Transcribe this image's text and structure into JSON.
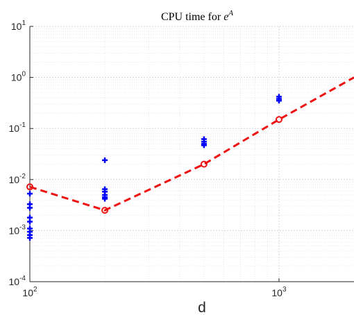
{
  "chart_data": {
    "type": "scatter",
    "title": "CPU time for e^A",
    "title_prefix": "CPU time for ",
    "title_base": "e",
    "title_exponent": "A",
    "xlabel": "d",
    "ylabel": "",
    "xscale": "log",
    "yscale": "log",
    "xlim": [
      100,
      2000
    ],
    "ylim": [
      0.0001,
      10
    ],
    "grid": "major+minor",
    "x_ticks": [
      {
        "base": "10",
        "exp": "2",
        "value": 100
      },
      {
        "base": "10",
        "exp": "3",
        "value": 1000
      }
    ],
    "y_ticks": [
      {
        "base": "10",
        "exp": "1",
        "value": 10
      },
      {
        "base": "10",
        "exp": "0",
        "value": 1
      },
      {
        "base": "10",
        "exp": "-1",
        "value": 0.1
      },
      {
        "base": "10",
        "exp": "-2",
        "value": 0.01
      },
      {
        "base": "10",
        "exp": "-3",
        "value": 0.001
      },
      {
        "base": "10",
        "exp": "-4",
        "value": 0.0001
      }
    ],
    "series": [
      {
        "style": "blue plus markers",
        "color": "#0000ff",
        "points": [
          [
            100,
            0.0053
          ],
          [
            100,
            0.0033
          ],
          [
            100,
            0.0028
          ],
          [
            100,
            0.0018
          ],
          [
            100,
            0.0015
          ],
          [
            100,
            0.0011
          ],
          [
            100,
            0.00095
          ],
          [
            100,
            0.00082
          ],
          [
            100,
            0.00072
          ],
          [
            200,
            0.024
          ],
          [
            200,
            0.0065
          ],
          [
            200,
            0.0058
          ],
          [
            200,
            0.005
          ],
          [
            200,
            0.0045
          ],
          [
            200,
            0.0042
          ],
          [
            500,
            0.062
          ],
          [
            500,
            0.055
          ],
          [
            500,
            0.05
          ],
          [
            500,
            0.047
          ],
          [
            1000,
            0.42
          ],
          [
            1000,
            0.38
          ],
          [
            1000,
            0.35
          ]
        ]
      },
      {
        "style": "red dashed line with circle markers",
        "color": "#ee1111",
        "points": [
          [
            100,
            0.0072
          ],
          [
            200,
            0.0025
          ],
          [
            500,
            0.02
          ],
          [
            1000,
            0.15
          ]
        ],
        "line_points": [
          [
            100,
            0.0072
          ],
          [
            200,
            0.0025
          ],
          [
            500,
            0.02
          ],
          [
            1000,
            0.15
          ],
          [
            2000,
            1.0
          ]
        ]
      }
    ]
  }
}
